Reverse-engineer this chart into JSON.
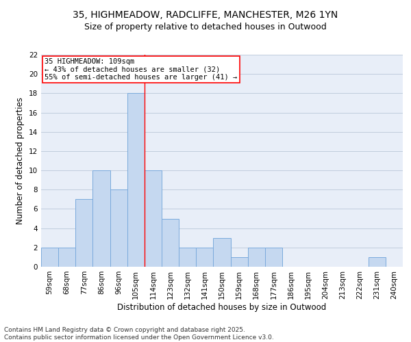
{
  "title_line1": "35, HIGHMEADOW, RADCLIFFE, MANCHESTER, M26 1YN",
  "title_line2": "Size of property relative to detached houses in Outwood",
  "xlabel": "Distribution of detached houses by size in Outwood",
  "ylabel": "Number of detached properties",
  "categories": [
    "59sqm",
    "68sqm",
    "77sqm",
    "86sqm",
    "96sqm",
    "105sqm",
    "114sqm",
    "123sqm",
    "132sqm",
    "141sqm",
    "150sqm",
    "159sqm",
    "168sqm",
    "177sqm",
    "186sqm",
    "195sqm",
    "204sqm",
    "213sqm",
    "222sqm",
    "231sqm",
    "240sqm"
  ],
  "values": [
    2,
    2,
    7,
    10,
    8,
    18,
    10,
    5,
    2,
    2,
    3,
    1,
    2,
    2,
    0,
    0,
    0,
    0,
    0,
    1,
    0
  ],
  "bar_color": "#c5d8f0",
  "bar_edge_color": "#7aaadc",
  "ref_line_x": 5.5,
  "annotation_line1": "35 HIGHMEADOW: 109sqm",
  "annotation_line2": "← 43% of detached houses are smaller (32)",
  "annotation_line3": "55% of semi-detached houses are larger (41) →",
  "ylim": [
    0,
    22
  ],
  "yticks": [
    0,
    2,
    4,
    6,
    8,
    10,
    12,
    14,
    16,
    18,
    20,
    22
  ],
  "footer": "Contains HM Land Registry data © Crown copyright and database right 2025.\nContains public sector information licensed under the Open Government Licence v3.0.",
  "background_color": "#e8eef8",
  "grid_color": "#c0ccdd",
  "title_fontsize": 10,
  "subtitle_fontsize": 9,
  "axis_label_fontsize": 8.5,
  "tick_fontsize": 7.5,
  "annotation_fontsize": 7.5,
  "footer_fontsize": 6.5
}
